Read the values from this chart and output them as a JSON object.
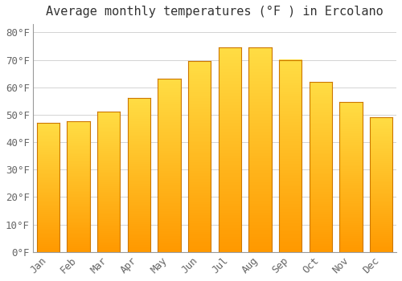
{
  "title": "Average monthly temperatures (°F ) in Ercolano",
  "months": [
    "Jan",
    "Feb",
    "Mar",
    "Apr",
    "May",
    "Jun",
    "Jul",
    "Aug",
    "Sep",
    "Oct",
    "Nov",
    "Dec"
  ],
  "values": [
    47,
    47.5,
    51,
    56,
    63,
    69.5,
    74.5,
    74.5,
    70,
    62,
    54.5,
    49
  ],
  "bar_color_gradient_top": "#FFDD44",
  "bar_color_gradient_mid": "#FFBB22",
  "bar_color_gradient_bot": "#FF9900",
  "bar_edge_color": "#CC7700",
  "background_color": "#FFFFFF",
  "grid_color": "#CCCCCC",
  "title_color": "#333333",
  "tick_color": "#666666",
  "ylim": [
    0,
    83
  ],
  "yticks": [
    0,
    10,
    20,
    30,
    40,
    50,
    60,
    70,
    80
  ],
  "ytick_labels": [
    "0°F",
    "10°F",
    "20°F",
    "30°F",
    "40°F",
    "50°F",
    "60°F",
    "70°F",
    "80°F"
  ],
  "title_fontsize": 11,
  "tick_fontsize": 9,
  "bar_width": 0.75
}
